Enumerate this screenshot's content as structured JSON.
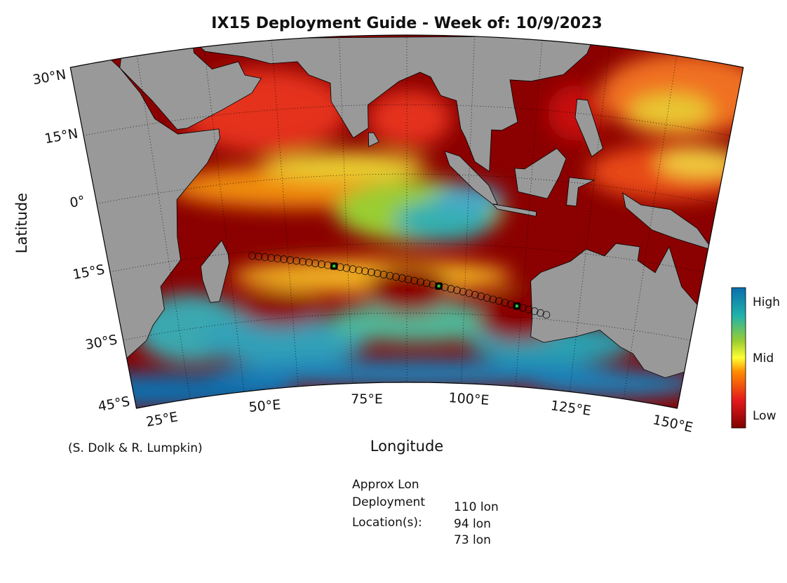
{
  "header": {
    "title": "IX15 Deployment Guide - Week of: 10/9/2023"
  },
  "map": {
    "lat_labels": [
      "30°N",
      "15°N",
      "0°",
      "15°S",
      "30°S",
      "45°S"
    ],
    "lon_labels": [
      "25°E",
      "50°E",
      "75°E",
      "100°E",
      "125°E",
      "150°E"
    ],
    "y_label": "Latitude",
    "x_label": "Longitude",
    "credit": "(S. Dolk & R. Lumpkin)"
  },
  "colorbar": {
    "labels": [
      "High",
      "Mid",
      "Low"
    ]
  },
  "deployment": {
    "heading": [
      "Approx Lon",
      "Deployment",
      "Location(s):"
    ],
    "locations": [
      "110 lon",
      "94 lon",
      "73 lon"
    ]
  }
}
